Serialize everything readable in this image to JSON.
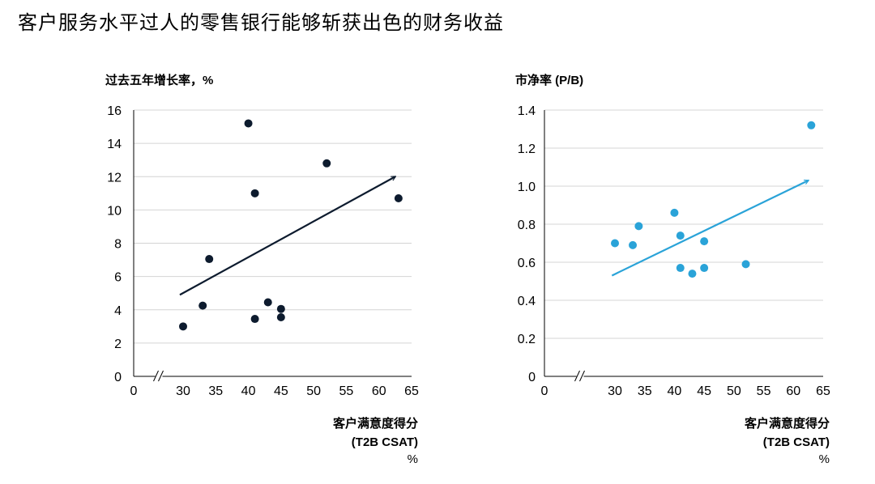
{
  "title": "客户服务水平过人的零售银行能够斩获出色的财务收益",
  "chart_data": [
    {
      "type": "scatter",
      "ylabel": "过去五年增长率，%",
      "xlabel_lines": [
        "客户满意度得分",
        "(T2B CSAT)",
        "%"
      ],
      "x_ticks": [
        "0",
        "30",
        "35",
        "40",
        "45",
        "50",
        "55",
        "60",
        "65"
      ],
      "y_ticks": [
        "0",
        "2",
        "4",
        "6",
        "8",
        "10",
        "12",
        "14",
        "16"
      ],
      "ylim": [
        0,
        16
      ],
      "x_axis_break": true,
      "grid": "horizontal",
      "color": "#0d1b2e",
      "points": [
        {
          "x": 30,
          "y": 3.0
        },
        {
          "x": 33,
          "y": 4.25
        },
        {
          "x": 34,
          "y": 7.05
        },
        {
          "x": 40,
          "y": 15.2
        },
        {
          "x": 41,
          "y": 11.0
        },
        {
          "x": 41,
          "y": 3.45
        },
        {
          "x": 43,
          "y": 4.45
        },
        {
          "x": 45,
          "y": 4.05
        },
        {
          "x": 45,
          "y": 3.55
        },
        {
          "x": 52,
          "y": 12.8
        },
        {
          "x": 63,
          "y": 10.7
        }
      ],
      "trend": {
        "x1": 29.5,
        "y1": 4.9,
        "x2": 62.5,
        "y2": 12.0
      }
    },
    {
      "type": "scatter",
      "ylabel": "市净率 (P/B)",
      "xlabel_lines": [
        "客户满意度得分",
        "(T2B CSAT)",
        "%"
      ],
      "x_ticks": [
        "0",
        "30",
        "35",
        "40",
        "45",
        "50",
        "55",
        "60",
        "65"
      ],
      "y_ticks": [
        "0",
        "0.2",
        "0.4",
        "0.6",
        "0.8",
        "1.0",
        "1.2",
        "1.4"
      ],
      "ylim": [
        0,
        1.4
      ],
      "x_axis_break": true,
      "grid": "horizontal",
      "color": "#2aa3d8",
      "points": [
        {
          "x": 30,
          "y": 0.7
        },
        {
          "x": 33,
          "y": 0.69
        },
        {
          "x": 34,
          "y": 0.79
        },
        {
          "x": 40,
          "y": 0.86
        },
        {
          "x": 41,
          "y": 0.74
        },
        {
          "x": 41,
          "y": 0.57
        },
        {
          "x": 43,
          "y": 0.54
        },
        {
          "x": 45,
          "y": 0.71
        },
        {
          "x": 45,
          "y": 0.57
        },
        {
          "x": 52,
          "y": 0.59
        },
        {
          "x": 63,
          "y": 1.32
        }
      ],
      "trend": {
        "x1": 29.5,
        "y1": 0.53,
        "x2": 62.5,
        "y2": 1.03
      }
    }
  ]
}
